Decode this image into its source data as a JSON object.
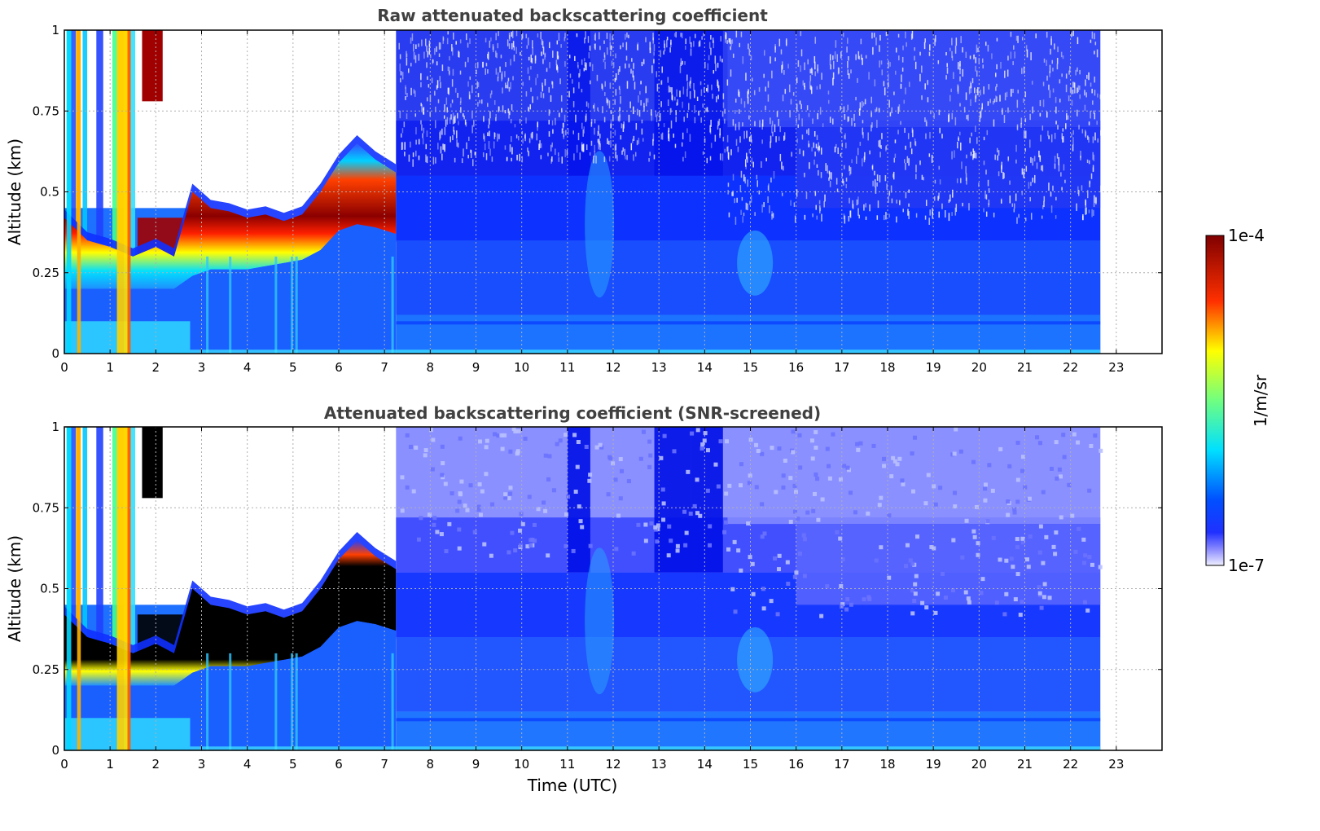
{
  "chart_data": [
    {
      "type": "heatmap",
      "title": "Raw attenuated backscattering coefficient",
      "ylabel": "Altitude (km)",
      "xlabel": "",
      "xlim": [
        0,
        24
      ],
      "ylim": [
        0,
        1
      ],
      "x_ticks": [
        0,
        1,
        2,
        3,
        4,
        5,
        6,
        7,
        8,
        9,
        10,
        11,
        12,
        13,
        14,
        15,
        16,
        17,
        18,
        19,
        20,
        21,
        22,
        23
      ],
      "y_ticks": [
        0,
        0.25,
        0.5,
        0.75,
        1
      ],
      "y_tick_labels": [
        "0",
        "0.25",
        "0.5",
        "0.75",
        "1"
      ],
      "grid": true,
      "data_end_time": 22.65,
      "screened": false,
      "layer_top": [
        [
          0,
          0.42
        ],
        [
          0.5,
          0.35
        ],
        [
          1,
          0.33
        ],
        [
          1.5,
          0.3
        ],
        [
          2,
          0.33
        ],
        [
          2.4,
          0.3
        ],
        [
          2.8,
          0.5
        ],
        [
          3.2,
          0.45
        ],
        [
          3.6,
          0.44
        ],
        [
          4,
          0.42
        ],
        [
          4.4,
          0.43
        ],
        [
          4.8,
          0.41
        ],
        [
          5.2,
          0.43
        ],
        [
          5.6,
          0.5
        ],
        [
          6,
          0.59
        ],
        [
          6.4,
          0.65
        ],
        [
          6.8,
          0.6
        ],
        [
          7.25,
          0.56
        ]
      ],
      "layer_bottom": [
        [
          0,
          0.2
        ],
        [
          0.5,
          0.2
        ],
        [
          1,
          0.2
        ],
        [
          1.5,
          0.2
        ],
        [
          2,
          0.2
        ],
        [
          2.4,
          0.2
        ],
        [
          2.8,
          0.24
        ],
        [
          3.2,
          0.26
        ],
        [
          3.6,
          0.26
        ],
        [
          4,
          0.26
        ],
        [
          4.4,
          0.27
        ],
        [
          4.8,
          0.28
        ],
        [
          5.2,
          0.29
        ],
        [
          5.6,
          0.32
        ],
        [
          6,
          0.38
        ],
        [
          6.4,
          0.4
        ],
        [
          6.8,
          0.39
        ],
        [
          7.25,
          0.37
        ]
      ]
    },
    {
      "type": "heatmap",
      "title": "Attenuated backscattering coefficient (SNR-screened)",
      "ylabel": "Altitude (km)",
      "xlabel": "Time (UTC)",
      "xlim": [
        0,
        24
      ],
      "ylim": [
        0,
        1
      ],
      "x_ticks": [
        0,
        1,
        2,
        3,
        4,
        5,
        6,
        7,
        8,
        9,
        10,
        11,
        12,
        13,
        14,
        15,
        16,
        17,
        18,
        19,
        20,
        21,
        22,
        23
      ],
      "y_ticks": [
        0,
        0.25,
        0.5,
        0.75,
        1
      ],
      "y_tick_labels": [
        "0",
        "0.25",
        "0.5",
        "0.75",
        "1"
      ],
      "grid": true,
      "data_end_time": 22.65,
      "screened": true
    }
  ],
  "colorbar": {
    "label": "1/m/sr",
    "max_label": "1e-4",
    "min_label": "1e-7",
    "colormap": "jet",
    "vmin": 1e-07,
    "vmax": 0.0001
  }
}
